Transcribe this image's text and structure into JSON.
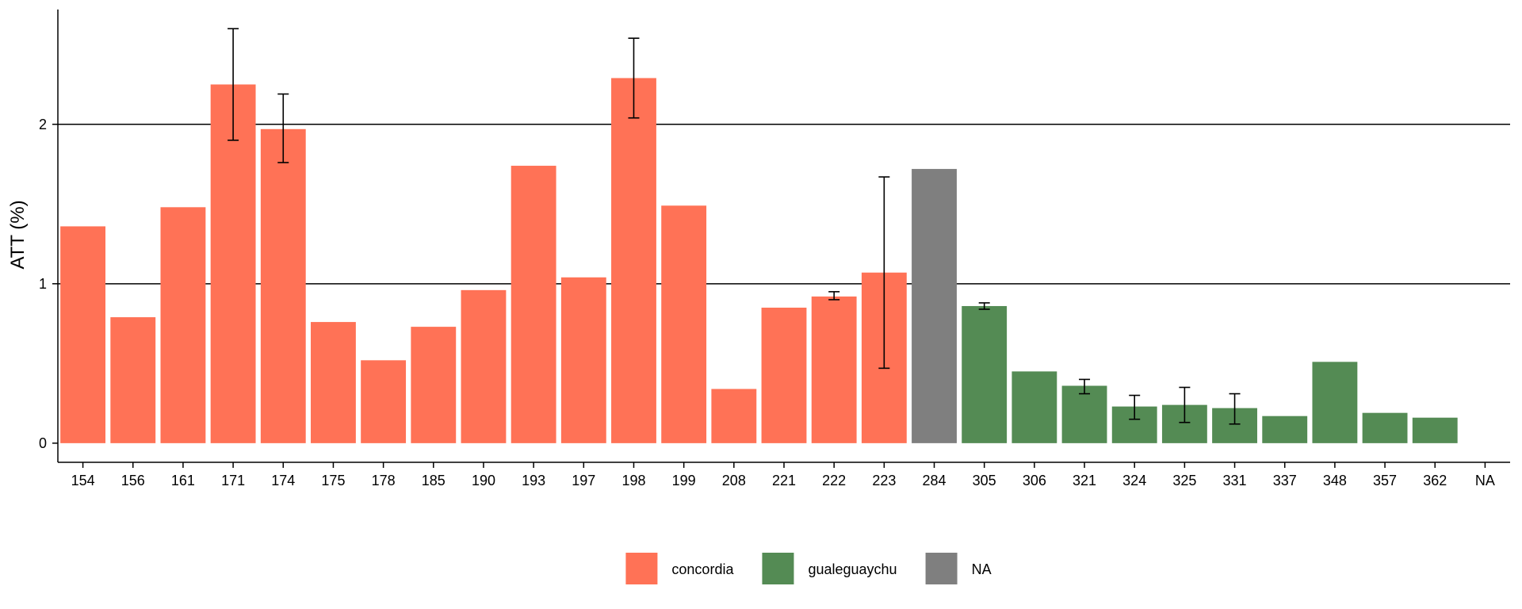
{
  "chart_data": {
    "type": "bar",
    "ylabel": "ATT (%)",
    "xlabel": "",
    "ylim": [
      -0.12,
      2.72
    ],
    "yticks": [
      0,
      1,
      2
    ],
    "ytick_labels": [
      "0",
      "1",
      "2"
    ],
    "gridlines_y": [
      1,
      2
    ],
    "categories": [
      "154",
      "156",
      "161",
      "171",
      "174",
      "175",
      "178",
      "185",
      "190",
      "193",
      "197",
      "198",
      "199",
      "208",
      "221",
      "222",
      "223",
      "284",
      "305",
      "306",
      "321",
      "324",
      "325",
      "331",
      "337",
      "348",
      "357",
      "362",
      "NA"
    ],
    "values": [
      1.36,
      0.79,
      1.48,
      2.25,
      1.97,
      0.76,
      0.52,
      0.73,
      0.96,
      1.74,
      1.04,
      2.29,
      1.49,
      0.34,
      0.85,
      0.92,
      1.07,
      1.72,
      0.86,
      0.45,
      0.36,
      0.23,
      0.24,
      0.22,
      0.17,
      0.51,
      0.19,
      0.16,
      null
    ],
    "groups": [
      "concordia",
      "concordia",
      "concordia",
      "concordia",
      "concordia",
      "concordia",
      "concordia",
      "concordia",
      "concordia",
      "concordia",
      "concordia",
      "concordia",
      "concordia",
      "concordia",
      "concordia",
      "concordia",
      "concordia",
      "NA",
      "gualeguaychu",
      "gualeguaychu",
      "gualeguaychu",
      "gualeguaychu",
      "gualeguaychu",
      "gualeguaychu",
      "gualeguaychu",
      "gualeguaychu",
      "gualeguaychu",
      "gualeguaychu",
      "gualeguaychu"
    ],
    "error_bars": [
      {
        "category": "171",
        "low": 1.9,
        "high": 2.6
      },
      {
        "category": "174",
        "low": 1.76,
        "high": 2.19
      },
      {
        "category": "198",
        "low": 2.04,
        "high": 2.54
      },
      {
        "category": "222",
        "low": 0.9,
        "high": 0.95
      },
      {
        "category": "223",
        "low": 0.47,
        "high": 1.67
      },
      {
        "category": "305",
        "low": 0.84,
        "high": 0.88
      },
      {
        "category": "321",
        "low": 0.31,
        "high": 0.4
      },
      {
        "category": "324",
        "low": 0.15,
        "high": 0.3
      },
      {
        "category": "325",
        "low": 0.13,
        "high": 0.35
      },
      {
        "category": "331",
        "low": 0.12,
        "high": 0.31
      }
    ],
    "legend": {
      "position": "bottom",
      "items": [
        {
          "label": "concordia",
          "group": "concordia"
        },
        {
          "label": "gualeguaychu",
          "group": "gualeguaychu"
        },
        {
          "label": "NA",
          "group": "NA"
        }
      ]
    },
    "colors": {
      "concordia": "#FF7256",
      "gualeguaychu": "#548B54",
      "NA": "#7F7F7F"
    },
    "grid": true
  }
}
